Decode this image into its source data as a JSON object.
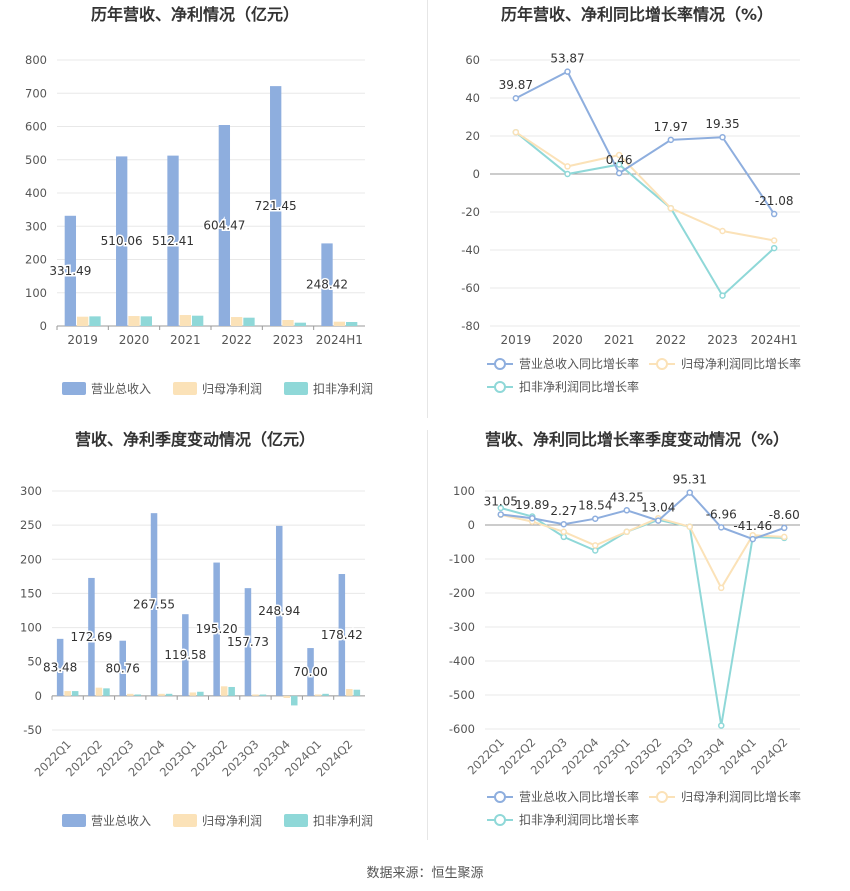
{
  "source_note": "数据来源：恒生聚源",
  "charts": [
    {
      "type": "bar",
      "title": "历年营收、净利情况（亿元）",
      "categories": [
        "2019",
        "2020",
        "2021",
        "2022",
        "2023",
        "2024H1"
      ],
      "ylim": [
        0,
        800
      ],
      "yticks": [
        0,
        100,
        200,
        300,
        400,
        500,
        600,
        700,
        800
      ],
      "series": [
        {
          "name": "营业总收入",
          "color": "#8eaede",
          "values": [
            331.49,
            510.06,
            512.41,
            604.47,
            721.45,
            248.42
          ],
          "labels": [
            "331.49",
            "510.06",
            "512.41",
            "604.47",
            "721.45",
            "248.42"
          ]
        },
        {
          "name": "归母净利润",
          "color": "#fbe2b8",
          "values": [
            28,
            30,
            33,
            27,
            18,
            13
          ]
        },
        {
          "name": "扣非净利润",
          "color": "#8fd8d8",
          "values": [
            29,
            29,
            31,
            25,
            10,
            12
          ]
        }
      ],
      "legend_position": "bottom"
    },
    {
      "type": "line",
      "title": "历年营收、净利同比增长率情况（%）",
      "categories": [
        "2019",
        "2020",
        "2021",
        "2022",
        "2023",
        "2024H1"
      ],
      "ylim": [
        -80,
        60
      ],
      "yticks": [
        -80,
        -60,
        -40,
        -20,
        0,
        20,
        40,
        60
      ],
      "series": [
        {
          "name": "营业总收入同比增长率",
          "color": "#8eaede",
          "values": [
            39.87,
            53.87,
            0.46,
            17.97,
            19.35,
            -21.08
          ],
          "labels": [
            "39.87",
            "53.87",
            "0.46",
            "17.97",
            "19.35",
            "-21.08"
          ]
        },
        {
          "name": "归母净利润同比增长率",
          "color": "#fbe2b8",
          "values": [
            22,
            4,
            10,
            -18,
            -30,
            -35
          ]
        },
        {
          "name": "扣非净利润同比增长率",
          "color": "#8fd8d8",
          "values": [
            22,
            0,
            5,
            -18,
            -64,
            -39
          ]
        }
      ],
      "legend_position": "bottom"
    },
    {
      "type": "bar",
      "title": "营收、净利季度变动情况（亿元）",
      "categories": [
        "2022Q1",
        "2022Q2",
        "2022Q3",
        "2022Q4",
        "2023Q1",
        "2023Q2",
        "2023Q3",
        "2023Q4",
        "2024Q1",
        "2024Q2"
      ],
      "ylim": [
        -50,
        300
      ],
      "yticks": [
        -50,
        0,
        50,
        100,
        150,
        200,
        250,
        300
      ],
      "series": [
        {
          "name": "营业总收入",
          "color": "#8eaede",
          "values": [
            83.48,
            172.69,
            80.76,
            267.55,
            119.58,
            195.2,
            157.73,
            248.94,
            70.0,
            178.42
          ],
          "labels": [
            "83.48",
            "172.69",
            "80.76",
            "267.55",
            "119.58",
            "195.20",
            "157.73",
            "248.94",
            "70.00",
            "178.42"
          ]
        },
        {
          "name": "归母净利润",
          "color": "#fbe2b8",
          "values": [
            7,
            12,
            3,
            3,
            5,
            14,
            2,
            -3,
            2,
            10
          ]
        },
        {
          "name": "扣非净利润",
          "color": "#8fd8d8",
          "values": [
            7,
            11,
            2,
            3,
            6,
            13,
            2,
            -14,
            3,
            9
          ]
        }
      ],
      "legend_position": "bottom"
    },
    {
      "type": "line",
      "title": "营收、净利同比增长率季度变动情况（%）",
      "categories": [
        "2022Q1",
        "2022Q2",
        "2022Q3",
        "2022Q4",
        "2023Q1",
        "2023Q2",
        "2023Q3",
        "2023Q4",
        "2024Q1",
        "2024Q2"
      ],
      "ylim": [
        -600,
        100
      ],
      "yticks": [
        -600,
        -500,
        -400,
        -300,
        -200,
        -100,
        0,
        100
      ],
      "series": [
        {
          "name": "营业总收入同比增长率",
          "color": "#8eaede",
          "values": [
            31.05,
            19.89,
            2.27,
            18.54,
            43.25,
            13.04,
            95.31,
            -6.96,
            -41.46,
            -8.6
          ],
          "labels": [
            "31.05",
            "19.89",
            "2.27",
            "18.54",
            "43.25",
            "13.04",
            "95.31",
            "-6.96",
            "-41.46",
            "-8.60"
          ]
        },
        {
          "name": "归母净利润同比增长率",
          "color": "#fbe2b8",
          "values": [
            30,
            10,
            -20,
            -60,
            -20,
            20,
            -5,
            -185,
            -30,
            -35
          ]
        },
        {
          "name": "扣非净利润同比增长率",
          "color": "#8fd8d8",
          "values": [
            50,
            25,
            -35,
            -75,
            -20,
            15,
            -5,
            -590,
            -35,
            -38
          ]
        }
      ],
      "legend_position": "bottom"
    }
  ]
}
